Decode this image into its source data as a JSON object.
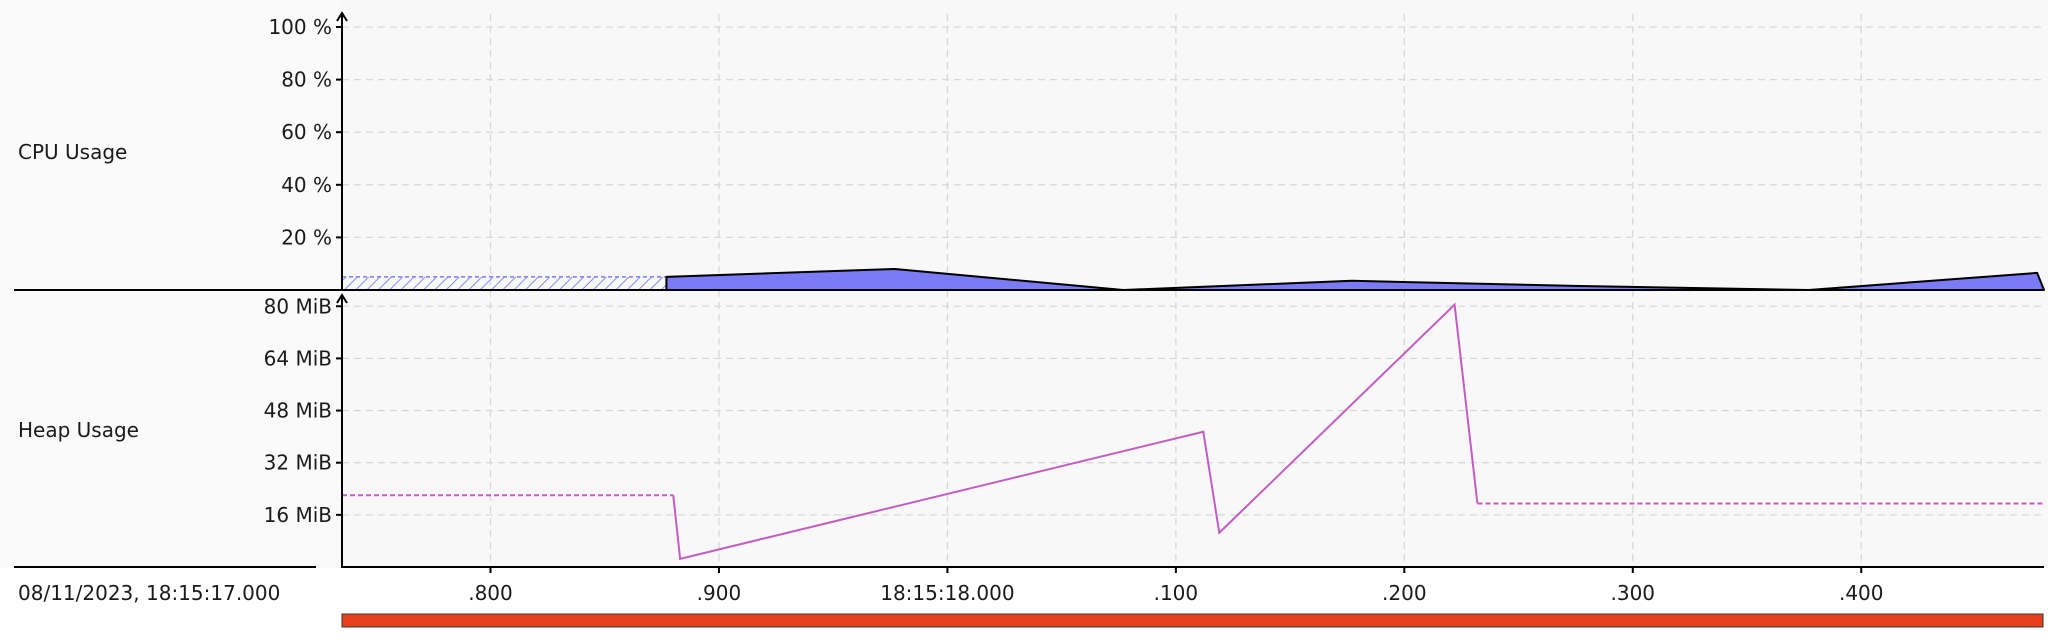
{
  "chart_data": [
    {
      "type": "area",
      "row_label": "CPU Usage",
      "y_ticks": [
        "20 %",
        "40 %",
        "60 %",
        "80 %",
        "100 %"
      ],
      "ylim": [
        0,
        100
      ],
      "grid": true,
      "estimated_part": {
        "x_range": [
          17.735,
          17.877
        ],
        "value": 5
      },
      "series": [
        {
          "name": "",
          "color": "#7b7bf5",
          "x": [
            17.877,
            17.977,
            18.077,
            18.177,
            18.277,
            18.377,
            18.477
          ],
          "y": [
            5,
            8,
            0,
            3.5,
            1.5,
            0,
            6.5
          ]
        }
      ]
    },
    {
      "type": "line",
      "row_label": "Heap Usage",
      "y_ticks": [
        "16 MiB",
        "32 MiB",
        "48 MiB",
        "64 MiB",
        "80 MiB"
      ],
      "ylim": [
        0,
        81
      ],
      "grid": true,
      "estimated_before": {
        "x_range": [
          17.735,
          17.88
        ],
        "value": 22
      },
      "estimated_after": {
        "x_range": [
          18.232,
          18.48
        ],
        "value": 19.5
      },
      "series": [
        {
          "name": "",
          "color": "#c35cc3",
          "x": [
            17.88,
            17.883,
            18.112,
            18.119,
            18.222,
            18.232
          ],
          "y": [
            22,
            2.5,
            41.5,
            10.5,
            80.5,
            19.5
          ]
        }
      ]
    }
  ],
  "time_axis": {
    "start_label": "08/11/2023, 18:15:17.000",
    "ticks": [
      {
        "t": 17.8,
        "label": ".800"
      },
      {
        "t": 17.9,
        "label": ".900"
      },
      {
        "t": 18.0,
        "label": "18:15:18.000"
      },
      {
        "t": 18.1,
        "label": ".100"
      },
      {
        "t": 18.2,
        "label": ".200"
      },
      {
        "t": 18.3,
        "label": ".300"
      },
      {
        "t": 18.4,
        "label": ".400"
      }
    ],
    "xlim": [
      17.735,
      18.48
    ]
  },
  "colors": {
    "cpu_fill": "#7b7bf5",
    "heap_line": "#c35cc3",
    "range_bar": "#e8401c",
    "grid": "#d8d8d8",
    "panel_bg": "#f8f8f8"
  }
}
